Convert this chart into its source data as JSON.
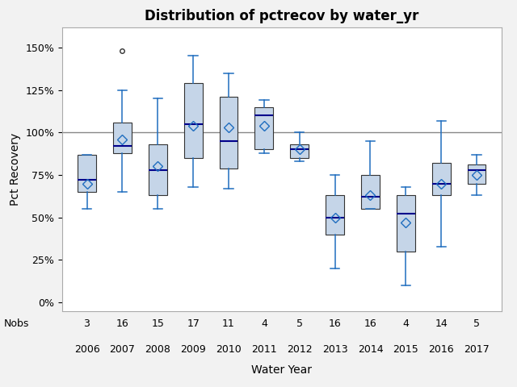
{
  "title": "Distribution of pctrecov by water_yr",
  "xlabel": "Water Year",
  "ylabel": "Pct Recovery",
  "years": [
    2006,
    2007,
    2008,
    2009,
    2010,
    2011,
    2012,
    2013,
    2014,
    2015,
    2016,
    2017
  ],
  "nobs": [
    3,
    16,
    15,
    17,
    11,
    4,
    5,
    16,
    16,
    4,
    14,
    5
  ],
  "box_data": {
    "2006": {
      "whislo": 55,
      "q1": 65,
      "med": 72,
      "q3": 87,
      "whishi": 87,
      "mean": 70,
      "fliers": []
    },
    "2007": {
      "whislo": 65,
      "q1": 88,
      "med": 92,
      "q3": 106,
      "whishi": 125,
      "mean": 96,
      "fliers": [
        148
      ]
    },
    "2008": {
      "whislo": 55,
      "q1": 63,
      "med": 78,
      "q3": 93,
      "whishi": 120,
      "mean": 80,
      "fliers": []
    },
    "2009": {
      "whislo": 68,
      "q1": 85,
      "med": 105,
      "q3": 129,
      "whishi": 145,
      "mean": 104,
      "fliers": []
    },
    "2010": {
      "whislo": 67,
      "q1": 79,
      "med": 95,
      "q3": 121,
      "whishi": 135,
      "mean": 103,
      "fliers": []
    },
    "2011": {
      "whislo": 88,
      "q1": 90,
      "med": 110,
      "q3": 115,
      "whishi": 119,
      "mean": 104,
      "fliers": []
    },
    "2012": {
      "whislo": 83,
      "q1": 85,
      "med": 90,
      "q3": 93,
      "whishi": 100,
      "mean": 90,
      "fliers": []
    },
    "2013": {
      "whislo": 20,
      "q1": 40,
      "med": 50,
      "q3": 63,
      "whishi": 75,
      "mean": 50,
      "fliers": []
    },
    "2014": {
      "whislo": 55,
      "q1": 55,
      "med": 62,
      "q3": 75,
      "whishi": 95,
      "mean": 63,
      "fliers": []
    },
    "2015": {
      "whislo": 10,
      "q1": 30,
      "med": 52,
      "q3": 63,
      "whishi": 68,
      "mean": 47,
      "fliers": []
    },
    "2016": {
      "whislo": 33,
      "q1": 63,
      "med": 70,
      "q3": 82,
      "whishi": 107,
      "mean": 70,
      "fliers": []
    },
    "2017": {
      "whislo": 63,
      "q1": 70,
      "med": 78,
      "q3": 81,
      "whishi": 87,
      "mean": 75,
      "fliers": []
    }
  },
  "box_color": "#c5d5e8",
  "box_edge_color": "#333333",
  "whisker_color": "#1f6dbf",
  "median_color": "#00008b",
  "mean_color": "#1f6dbf",
  "flier_color": "#333333",
  "hline_y": 100,
  "hline_color": "#888888",
  "ylim": [
    -5,
    162
  ],
  "yticks": [
    0,
    25,
    50,
    75,
    100,
    125,
    150
  ],
  "ytick_labels": [
    "0%",
    "25%",
    "50%",
    "75%",
    "100%",
    "125%",
    "150%"
  ],
  "background_color": "#f2f2f2",
  "plot_bg_color": "#ffffff",
  "title_fontsize": 12,
  "label_fontsize": 10,
  "tick_fontsize": 9,
  "nobs_fontsize": 9
}
